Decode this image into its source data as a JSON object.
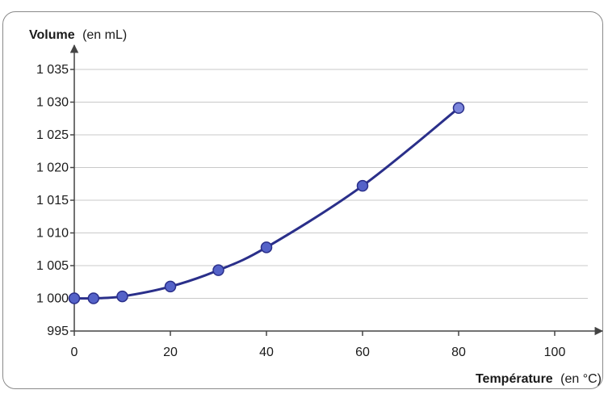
{
  "chart_data": {
    "type": "line",
    "ylabel_bold": "Volume",
    "ylabel_unit": "(en mL)",
    "xlabel_bold": "Température",
    "xlabel_unit": "(en °C)",
    "xlim": [
      0,
      110
    ],
    "ylim": [
      995,
      1035
    ],
    "x_ticks": [
      {
        "value": 0,
        "label": "0"
      },
      {
        "value": 20,
        "label": "20"
      },
      {
        "value": 40,
        "label": "40"
      },
      {
        "value": 60,
        "label": "60"
      },
      {
        "value": 80,
        "label": "80"
      },
      {
        "value": 100,
        "label": "100"
      }
    ],
    "y_ticks": [
      {
        "value": 995,
        "label": "995"
      },
      {
        "value": 1000,
        "label": "1 000"
      },
      {
        "value": 1005,
        "label": "1 005"
      },
      {
        "value": 1010,
        "label": "1 010"
      },
      {
        "value": 1015,
        "label": "1 015"
      },
      {
        "value": 1020,
        "label": "1 020"
      },
      {
        "value": 1025,
        "label": "1 025"
      },
      {
        "value": 1030,
        "label": "1 030"
      },
      {
        "value": 1035,
        "label": "1 035"
      }
    ],
    "grid": "horizontal",
    "series": [
      {
        "x": [
          0,
          4,
          10,
          20,
          30,
          40,
          60,
          80
        ],
        "y": [
          1000.0,
          1000.0,
          1000.3,
          1001.8,
          1004.3,
          1007.8,
          1017.2,
          1029.1
        ]
      }
    ],
    "colors": {
      "line": "#2a2f8a",
      "marker_fill": "#5462c8",
      "marker_stroke": "#2a2f8a",
      "last_marker_fill": "#7c86dc",
      "grid": "#c9c9c9",
      "axis": "#444444"
    }
  }
}
